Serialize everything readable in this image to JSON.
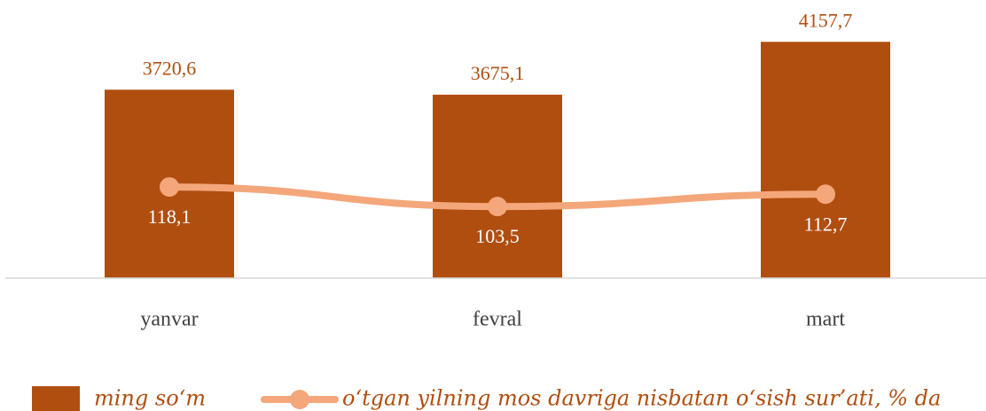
{
  "chart_data": {
    "type": "bar_line",
    "categories": [
      "yanvar",
      "fevral",
      "mart"
    ],
    "series": [
      {
        "name": "ming so‘m",
        "type": "bar",
        "color": "#b04e10",
        "values": [
          3720.6,
          3675.1,
          4157.7
        ],
        "value_labels": [
          "3720,6",
          "3675,1",
          "4157,7"
        ]
      },
      {
        "name": "o‘tgan yilning mos davriga nisbatan o‘sish sur’ati, % da",
        "type": "line",
        "axis": "y2",
        "color": "#f4a77a",
        "values": [
          118.1,
          103.5,
          112.7
        ],
        "value_labels": [
          "118,1",
          "103,5",
          "112,7"
        ]
      }
    ],
    "ylim": [
      2000,
      4200
    ],
    "y2lim": [
      50,
      230
    ],
    "legend": "bottom"
  }
}
